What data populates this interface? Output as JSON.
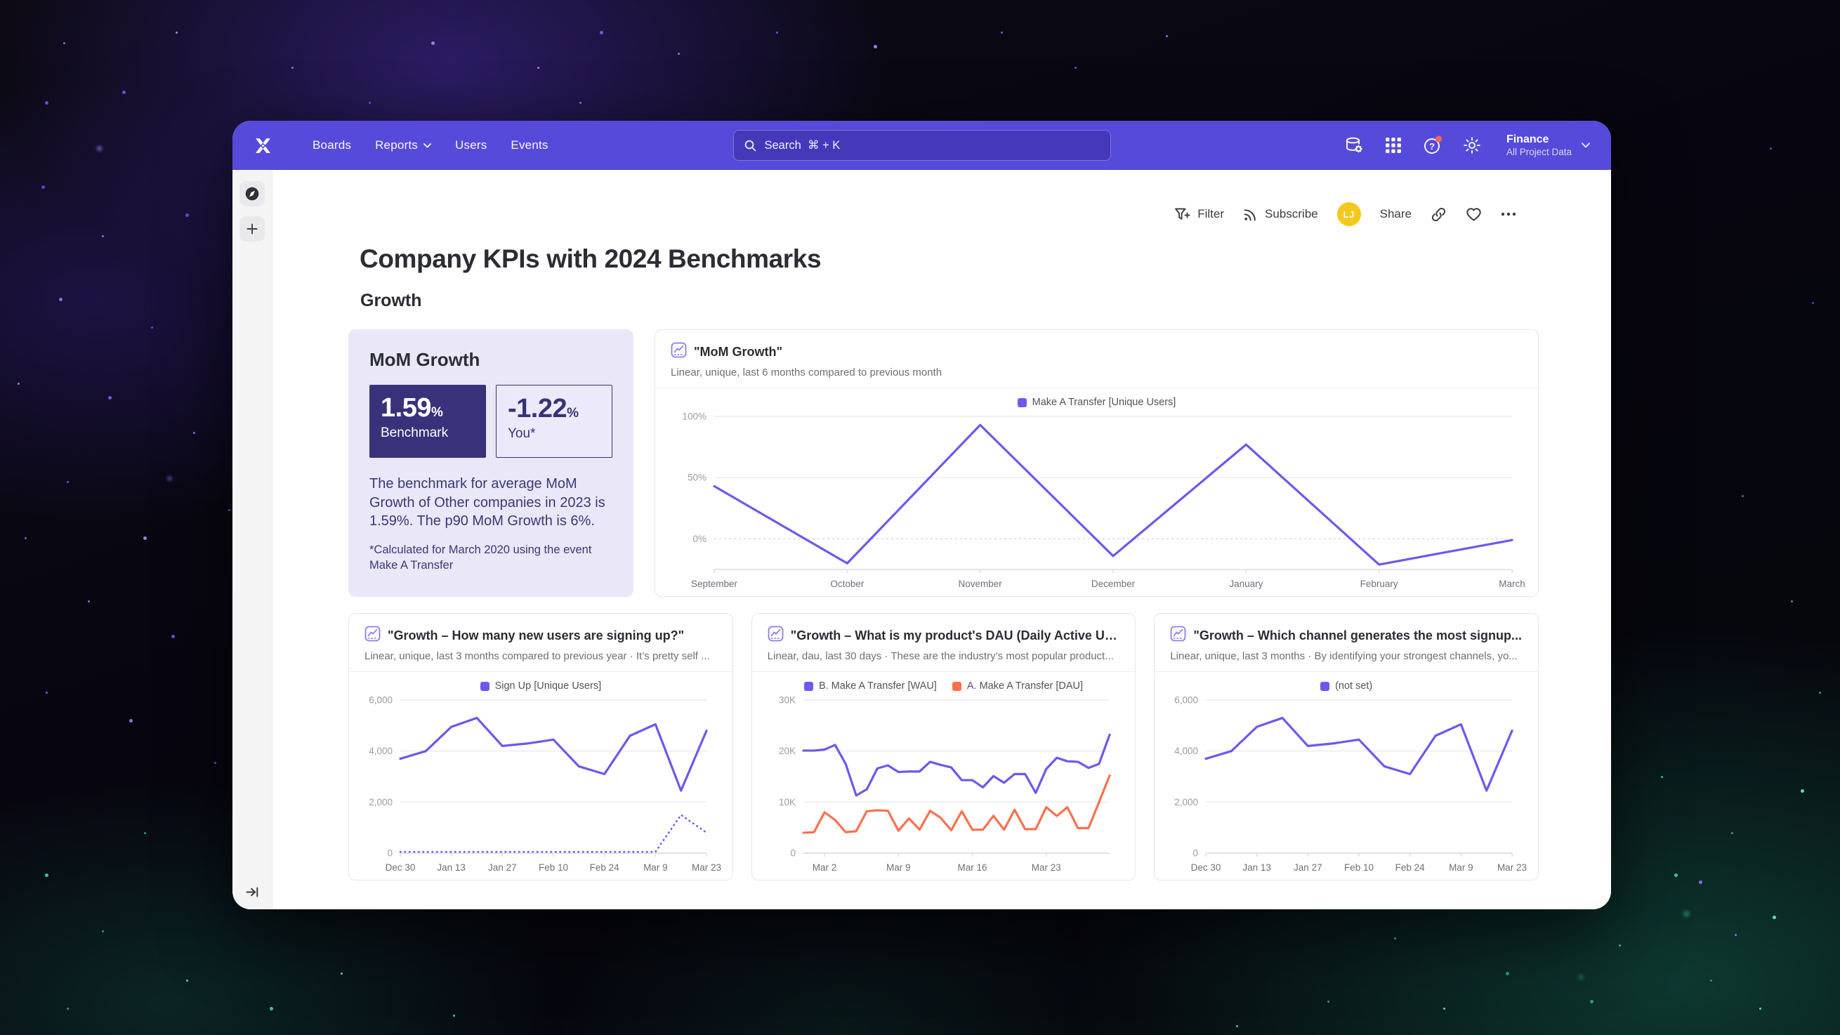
{
  "nav": {
    "items": [
      {
        "label": "Boards"
      },
      {
        "label": "Reports",
        "has_chevron": true
      },
      {
        "label": "Users"
      },
      {
        "label": "Events"
      }
    ],
    "search_placeholder": "Search  ⌘ + K",
    "project_name": "Finance",
    "project_subtitle": "All Project Data"
  },
  "icons": [
    "mixpanel-logo",
    "search-icon",
    "data-connections-icon",
    "apps-grid-icon",
    "help-icon",
    "settings-icon",
    "chevron-down-icon",
    "compass-icon",
    "plus-icon",
    "expand-sidebar-icon",
    "filter-icon",
    "rss-icon",
    "link-icon",
    "heart-icon",
    "ellipsis-icon",
    "line-chart-icon"
  ],
  "toolbar": {
    "filter_label": "Filter",
    "subscribe_label": "Subscribe",
    "avatar_initials": "LJ",
    "share_label": "Share"
  },
  "page": {
    "title": "Company KPIs with 2024 Benchmarks",
    "section": "Growth"
  },
  "benchmark_card": {
    "title": "MoM Growth",
    "benchmark_value": "1.59",
    "benchmark_unit": "%",
    "benchmark_label": "Benchmark",
    "you_value": "-1.22",
    "you_unit": "%",
    "you_label": "You*",
    "body": "The benchmark for average MoM Growth of Other companies in 2023 is 1.59%. The p90 MoM Growth is 6%.",
    "footnote": "*Calculated for March 2020 using the event Make A Transfer"
  },
  "colors": {
    "brand_purple": "#564ADB",
    "series_purple": "#6C59EC",
    "series_orange": "#F7714F",
    "dark_tile": "#39327A",
    "avatar_yellow": "#F5C81D",
    "help_badge": "#F56A4D"
  },
  "chart_data": [
    {
      "type": "line",
      "title": "\"MoM Growth\"",
      "subtitle": "Linear, unique, last 6 months compared to previous month",
      "x_labels": [
        "September",
        "October",
        "November",
        "December",
        "January",
        "February",
        "March"
      ],
      "x_label_indices": [
        0,
        1,
        2,
        3,
        4,
        5,
        6
      ],
      "ylim": [
        -25,
        100
      ],
      "yticks": [
        {
          "v": 0,
          "label": "0%",
          "dashed": true
        },
        {
          "v": 50,
          "label": "50%"
        },
        {
          "v": 100,
          "label": "100%"
        }
      ],
      "legend_position": "top",
      "grid": true,
      "series": [
        {
          "name": "Make A Transfer [Unique Users]",
          "color": "#6C59EC",
          "dashed": false,
          "values": [
            43,
            -20,
            93,
            -14,
            77,
            -21,
            -1
          ]
        }
      ]
    },
    {
      "type": "line",
      "title": "\"Growth – How many new users are signing up?\"",
      "subtitle": "Linear, unique, last 3 months compared to previous year · It’s pretty self ...",
      "x_labels": [
        "Dec 30",
        "Jan 13",
        "Jan 27",
        "Feb 10",
        "Feb 24",
        "Mar 9",
        "Mar 23"
      ],
      "x_label_indices": [
        0,
        2,
        4,
        6,
        8,
        10,
        12
      ],
      "ylim": [
        0,
        6000
      ],
      "yticks": [
        {
          "v": 0,
          "label": "0"
        },
        {
          "v": 2000,
          "label": "2,000"
        },
        {
          "v": 4000,
          "label": "4,000"
        },
        {
          "v": 6000,
          "label": "6,000"
        }
      ],
      "legend_position": "top",
      "grid": true,
      "series": [
        {
          "name": "Sign Up [Unique Users]",
          "color": "#6C59EC",
          "dashed": false,
          "values": [
            3700,
            4000,
            4950,
            5300,
            4200,
            4300,
            4450,
            3400,
            3100,
            4600,
            5050,
            2450,
            4800
          ]
        },
        {
          "name": "Sign Up [Unique Users] — previous year",
          "color": "#6C59EC",
          "dashed": true,
          "in_legend": false,
          "values": [
            50,
            50,
            50,
            50,
            50,
            50,
            50,
            50,
            50,
            50,
            50,
            1500,
            800
          ]
        }
      ]
    },
    {
      "type": "line",
      "title": "\"Growth – What is my product's DAU (Daily Active Us...",
      "subtitle": "Linear, dau, last 30 days · These are the industry’s most popular product...",
      "x_labels": [
        "Mar 2",
        "Mar 9",
        "Mar 16",
        "Mar 23"
      ],
      "x_label_indices": [
        2,
        9,
        16,
        23
      ],
      "ylim": [
        0,
        30000
      ],
      "yticks": [
        {
          "v": 0,
          "label": "0"
        },
        {
          "v": 10000,
          "label": "10K"
        },
        {
          "v": 20000,
          "label": "20K"
        },
        {
          "v": 30000,
          "label": "30K"
        }
      ],
      "legend_position": "top",
      "grid": true,
      "series": [
        {
          "name": "B. Make A Transfer [WAU]",
          "color": "#6C59EC",
          "dashed": false,
          "values": [
            20100,
            20100,
            20300,
            21200,
            17500,
            11300,
            12500,
            16600,
            17200,
            15900,
            16000,
            16000,
            17900,
            17300,
            16800,
            14300,
            14300,
            12900,
            15100,
            13800,
            15500,
            15500,
            11800,
            16500,
            18700,
            18000,
            17900,
            16700,
            17500,
            23200
          ]
        },
        {
          "name": "A. Make A Transfer [DAU]",
          "color": "#F7714F",
          "dashed": false,
          "values": [
            4000,
            4100,
            8000,
            6500,
            4100,
            4300,
            8200,
            8400,
            8300,
            4400,
            6800,
            4600,
            8300,
            6900,
            4500,
            8200,
            4600,
            4600,
            7300,
            4600,
            8500,
            4700,
            4700,
            9000,
            7300,
            9000,
            4900,
            4900,
            10000,
            15200
          ]
        }
      ]
    },
    {
      "type": "line",
      "title": "\"Growth – Which channel generates the most signup...",
      "subtitle": "Linear, unique, last 3 months · By identifying your strongest channels, yo...",
      "x_labels": [
        "Dec 30",
        "Jan 13",
        "Jan 27",
        "Feb 10",
        "Feb 24",
        "Mar 9",
        "Mar 23"
      ],
      "x_label_indices": [
        0,
        2,
        4,
        6,
        8,
        10,
        12
      ],
      "ylim": [
        0,
        6000
      ],
      "yticks": [
        {
          "v": 0,
          "label": "0"
        },
        {
          "v": 2000,
          "label": "2,000"
        },
        {
          "v": 4000,
          "label": "4,000"
        },
        {
          "v": 6000,
          "label": "6,000"
        }
      ],
      "legend_position": "top",
      "grid": true,
      "series": [
        {
          "name": "(not set)",
          "color": "#6C59EC",
          "dashed": false,
          "values": [
            3700,
            4000,
            4950,
            5300,
            4200,
            4300,
            4450,
            3400,
            3100,
            4600,
            5050,
            2450,
            4800
          ]
        }
      ]
    }
  ]
}
